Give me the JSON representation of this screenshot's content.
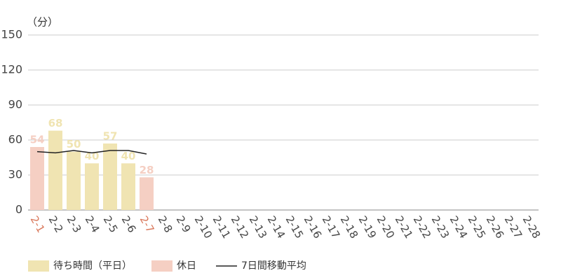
{
  "chart_data": {
    "type": "bar",
    "y_label": "（分）",
    "categories": [
      "2-1",
      "2-2",
      "2-3",
      "2-4",
      "2-5",
      "2-6",
      "2-7",
      "2-8",
      "2-9",
      "2-10",
      "2-11",
      "2-12",
      "2-13",
      "2-14",
      "2-15",
      "2-16",
      "2-17",
      "2-18",
      "2-19",
      "2-20",
      "2-21",
      "2-22",
      "2-23",
      "2-24",
      "2-25",
      "2-26",
      "2-27",
      "2-28"
    ],
    "series": [
      {
        "name": "待ち時間（平日）",
        "color": "#f0e4b2",
        "values": [
          null,
          68,
          50,
          40,
          57,
          40,
          null,
          null,
          null,
          null,
          null,
          null,
          null,
          null,
          null,
          null,
          null,
          null,
          null,
          null,
          null,
          null,
          null,
          null,
          null,
          null,
          null,
          null
        ]
      },
      {
        "name": "休日",
        "color": "#f5cfc3",
        "values": [
          54,
          null,
          null,
          null,
          null,
          null,
          28,
          null,
          null,
          null,
          null,
          null,
          null,
          null,
          null,
          null,
          null,
          null,
          null,
          null,
          null,
          null,
          null,
          null,
          null,
          null,
          null,
          null
        ]
      },
      {
        "name": "7日間移動平均",
        "type": "line",
        "color": "#222222",
        "values": [
          50,
          49,
          51,
          49,
          51,
          51,
          48,
          null,
          null,
          null,
          null,
          null,
          null,
          null,
          null,
          null,
          null,
          null,
          null,
          null,
          null,
          null,
          null,
          null,
          null,
          null,
          null,
          null
        ]
      }
    ],
    "ylim": [
      0,
      150
    ],
    "yticks": [
      0,
      30,
      60,
      90,
      120,
      150
    ],
    "grid": true
  }
}
